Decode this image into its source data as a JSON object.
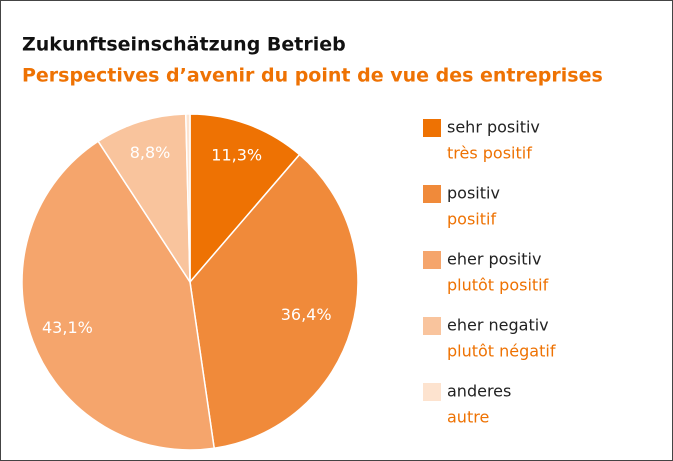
{
  "chart_data": {
    "type": "pie",
    "title": "Zukunftseinschätzung Betrieb",
    "subtitle": "Perspectives d’avenir du point de vue des entreprises",
    "categories": [
      "sehr positiv",
      "positiv",
      "eher positiv",
      "eher negativ",
      "anderes"
    ],
    "categories_fr": [
      "très positif",
      "positif",
      "plutôt positif",
      "plutôt négatif",
      "autre"
    ],
    "values": [
      11.3,
      36.4,
      43.1,
      8.8,
      0.4
    ],
    "value_labels": [
      "11,3%",
      "36,4%",
      "43,1%",
      "8,8%",
      null
    ],
    "colors": [
      "#ee7203",
      "#f08a3a",
      "#f5a56c",
      "#f9c49d",
      "#fde3cf"
    ]
  }
}
